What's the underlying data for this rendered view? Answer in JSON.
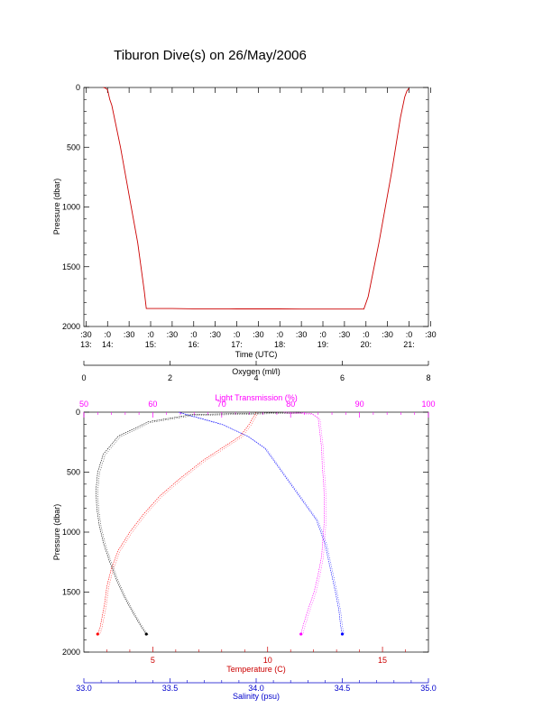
{
  "colors": {
    "black": "#000000",
    "red": "#ff0000",
    "blue": "#0000ff",
    "magenta": "#ff00ff",
    "darkred": "#cc0000",
    "darkblue": "#0000cc"
  },
  "chart_data": [
    {
      "type": "line",
      "title": "Tiburon Dive(s) on 26/May/2006",
      "xlabel": "Time (UTC)",
      "ylabel": "Pressure (dbar)",
      "ylim": [
        2000,
        0
      ],
      "y_ticks": [
        "0",
        "500",
        "1000",
        "1500",
        "2000"
      ],
      "x_tick_minutes": [
        ":30",
        ":0",
        ":30",
        ":0",
        ":30",
        ":0",
        ":30",
        ":0",
        ":30",
        ":0",
        ":30",
        ":0",
        ":30",
        ":0",
        ":30",
        ":0",
        ":30"
      ],
      "x_tick_hours": [
        "13:",
        "14:",
        "15:",
        "16:",
        "17:",
        "18:",
        "19:",
        "20:",
        "21:"
      ],
      "xlim_hours": [
        13.45,
        21.45
      ],
      "series": [
        {
          "x_hours": [
            13.9,
            13.95,
            14.0,
            14.05,
            14.1,
            14.3,
            14.5,
            14.7,
            14.85,
            14.9,
            15.5,
            16.0,
            16.5,
            17.0,
            17.5,
            18.0,
            18.5,
            19.0,
            19.5,
            19.95,
            20.05,
            20.3,
            20.6,
            20.8,
            20.9,
            20.95,
            21.0
          ],
          "y": [
            0,
            5,
            20,
            100,
            150,
            500,
            900,
            1300,
            1700,
            1850,
            1850,
            1852,
            1852,
            1853,
            1853,
            1853,
            1854,
            1854,
            1854,
            1854,
            1750,
            1300,
            700,
            250,
            80,
            30,
            5
          ]
        }
      ]
    },
    {
      "type": "line",
      "xlabel_bottom": "Temperature (C)",
      "xlabel_salinity": "Salinity (psu)",
      "xlabel_transmission": "Light Transmission (%)",
      "xlabel_oxygen": "Oxygen (ml/l)",
      "ylabel": "Pressure (dbar)",
      "ylim": [
        2000,
        0
      ],
      "y_ticks": [
        "0",
        "500",
        "1000",
        "1500",
        "2000"
      ],
      "temperature": {
        "xlim": [
          2.0,
          17.0
        ],
        "ticks": [
          "5",
          "10",
          "15"
        ],
        "tick_values": [
          5,
          10,
          15
        ]
      },
      "salinity": {
        "xlim": [
          33.0,
          35.0
        ],
        "ticks": [
          "33.0",
          "33.5",
          "34.0",
          "34.5",
          "35.0"
        ],
        "tick_values": [
          33.0,
          33.5,
          34.0,
          34.5,
          35.0
        ]
      },
      "transmission": {
        "xlim": [
          50,
          100
        ],
        "ticks": [
          "50",
          "60",
          "70",
          "80",
          "90",
          "100"
        ],
        "tick_values": [
          50,
          60,
          70,
          80,
          90,
          100
        ]
      },
      "oxygen": {
        "xlim": [
          0,
          8
        ],
        "ticks": [
          "0",
          "2",
          "4",
          "6",
          "8"
        ],
        "tick_values": [
          0,
          2,
          4,
          6,
          8
        ]
      },
      "series": [
        {
          "name": "Temperature",
          "x": [
            9.5,
            9.2,
            8.8,
            8.0,
            7.2,
            6.2,
            5.3,
            4.6,
            4.0,
            3.5,
            3.2,
            3.0,
            2.9,
            2.8,
            2.7,
            2.6
          ],
          "y": [
            0,
            100,
            200,
            300,
            400,
            550,
            700,
            850,
            1000,
            1150,
            1300,
            1450,
            1600,
            1700,
            1800,
            1850
          ]
        },
        {
          "name": "Salinity",
          "x": [
            33.55,
            33.8,
            33.95,
            34.05,
            34.1,
            34.15,
            34.2,
            34.25,
            34.3,
            34.35,
            34.4,
            34.43,
            34.46,
            34.48,
            34.49,
            34.5
          ],
          "y": [
            0,
            100,
            200,
            300,
            400,
            500,
            600,
            700,
            800,
            900,
            1100,
            1300,
            1500,
            1650,
            1780,
            1850
          ]
        },
        {
          "name": "Light Transmission",
          "x": [
            79,
            83,
            84,
            84.2,
            84.5,
            84.6,
            84.8,
            84.9,
            84.9,
            84.7,
            84.5,
            84.0,
            83.4,
            82.5,
            81.8,
            81.5
          ],
          "y": [
            0,
            10,
            50,
            150,
            300,
            450,
            600,
            750,
            900,
            1050,
            1200,
            1350,
            1500,
            1650,
            1780,
            1850
          ]
        },
        {
          "name": "Oxygen",
          "x": [
            5.0,
            2.5,
            1.5,
            0.8,
            0.45,
            0.32,
            0.28,
            0.3,
            0.36,
            0.46,
            0.6,
            0.76,
            0.95,
            1.15,
            1.35,
            1.45
          ],
          "y": [
            0,
            20,
            80,
            200,
            350,
            500,
            650,
            800,
            950,
            1100,
            1250,
            1400,
            1550,
            1680,
            1800,
            1850
          ]
        }
      ]
    }
  ]
}
